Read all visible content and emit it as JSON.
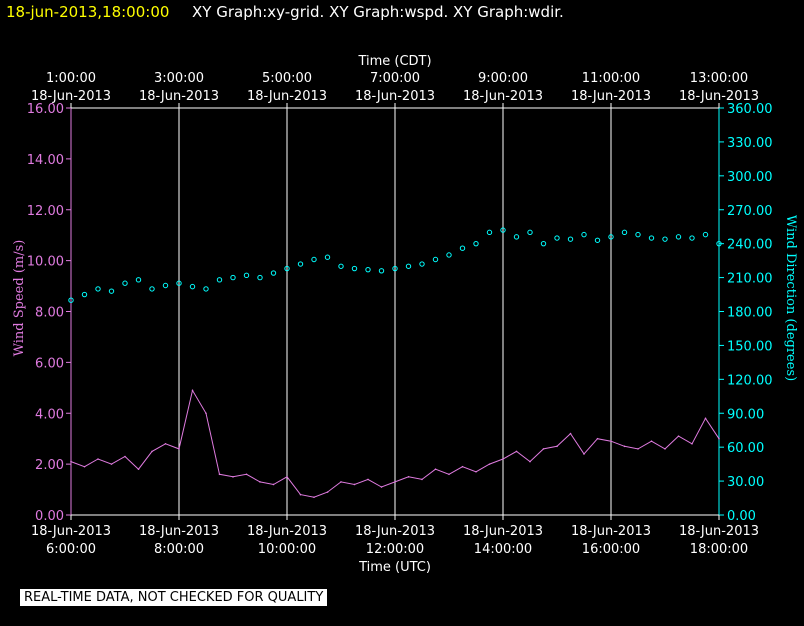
{
  "header": {
    "timestamp": "18-jun-2013,18:00:00",
    "graphs": "XY Graph:xy-grid.  XY Graph:wspd.  XY Graph:wdir."
  },
  "footer": {
    "notice": "REAL-TIME DATA, NOT CHECKED FOR QUALITY"
  },
  "colors": {
    "wspd": "#e07be0",
    "wdir": "#00ffff",
    "axis": "#ffffff",
    "grid": "#ffffff",
    "left_axis": "#e07be0",
    "right_axis": "#00ffff"
  },
  "chart_data": {
    "type": "line",
    "top_axis": {
      "title": "Time (CDT)",
      "ticks": [
        {
          "time": "1:00:00",
          "date": "18-Jun-2013",
          "utc_hour": 6
        },
        {
          "time": "3:00:00",
          "date": "18-Jun-2013",
          "utc_hour": 8
        },
        {
          "time": "5:00:00",
          "date": "18-Jun-2013",
          "utc_hour": 10
        },
        {
          "time": "7:00:00",
          "date": "18-Jun-2013",
          "utc_hour": 12
        },
        {
          "time": "9:00:00",
          "date": "18-Jun-2013",
          "utc_hour": 14
        },
        {
          "time": "11:00:00",
          "date": "18-Jun-2013",
          "utc_hour": 16
        },
        {
          "time": "13:00:00",
          "date": "18-Jun-2013",
          "utc_hour": 18
        }
      ]
    },
    "bottom_axis": {
      "title": "Time (UTC)",
      "ticks": [
        {
          "date": "18-Jun-2013",
          "time": "6:00:00",
          "utc_hour": 6
        },
        {
          "date": "18-Jun-2013",
          "time": "8:00:00",
          "utc_hour": 8
        },
        {
          "date": "18-Jun-2013",
          "time": "10:00:00",
          "utc_hour": 10
        },
        {
          "date": "18-Jun-2013",
          "time": "12:00:00",
          "utc_hour": 12
        },
        {
          "date": "18-Jun-2013",
          "time": "14:00:00",
          "utc_hour": 14
        },
        {
          "date": "18-Jun-2013",
          "time": "16:00:00",
          "utc_hour": 16
        },
        {
          "date": "18-Jun-2013",
          "time": "18:00:00",
          "utc_hour": 18
        }
      ]
    },
    "left_axis": {
      "title": "Wind Speed (m/s)",
      "ylim": [
        0,
        16
      ],
      "ticks": [
        "0.00",
        "2.00",
        "4.00",
        "6.00",
        "8.00",
        "10.00",
        "12.00",
        "14.00",
        "16.00"
      ]
    },
    "right_axis": {
      "title": "Wind Direction (degrees)",
      "ylim": [
        0,
        360
      ],
      "ticks": [
        "0.00",
        "30.00",
        "60.00",
        "90.00",
        "120.00",
        "150.00",
        "180.00",
        "210.00",
        "240.00",
        "270.00",
        "300.00",
        "330.00",
        "360.00"
      ]
    },
    "x_range_utc_hours": [
      6,
      18
    ],
    "grid": "vertical lines at tick times",
    "series": [
      {
        "key": "wspd",
        "style": "line",
        "axis": "left",
        "x": [
          6.0,
          6.25,
          6.5,
          6.75,
          7.0,
          7.25,
          7.5,
          7.75,
          8.0,
          8.25,
          8.5,
          8.75,
          9.0,
          9.25,
          9.5,
          9.75,
          10.0,
          10.25,
          10.5,
          10.75,
          11.0,
          11.25,
          11.5,
          11.75,
          12.0,
          12.25,
          12.5,
          12.75,
          13.0,
          13.25,
          13.5,
          13.75,
          14.0,
          14.25,
          14.5,
          14.75,
          15.0,
          15.25,
          15.5,
          15.75,
          16.0,
          16.25,
          16.5,
          16.75,
          17.0,
          17.25,
          17.5,
          17.75,
          18.0
        ],
        "values": [
          2.1,
          1.9,
          2.2,
          2.0,
          2.3,
          1.8,
          2.5,
          2.8,
          2.6,
          4.9,
          4.0,
          1.6,
          1.5,
          1.6,
          1.3,
          1.2,
          1.5,
          0.8,
          0.7,
          0.9,
          1.3,
          1.2,
          1.4,
          1.1,
          1.3,
          1.5,
          1.4,
          1.8,
          1.6,
          1.9,
          1.7,
          2.0,
          2.2,
          2.5,
          2.1,
          2.6,
          2.7,
          3.2,
          2.4,
          3.0,
          2.9,
          2.7,
          2.6,
          2.9,
          2.6,
          3.1,
          2.8,
          3.8,
          3.0
        ]
      },
      {
        "key": "wdir",
        "style": "scatter",
        "axis": "right",
        "x": [
          6.0,
          6.25,
          6.5,
          6.75,
          7.0,
          7.25,
          7.5,
          7.75,
          8.0,
          8.25,
          8.5,
          8.75,
          9.0,
          9.25,
          9.5,
          9.75,
          10.0,
          10.25,
          10.5,
          10.75,
          11.0,
          11.25,
          11.5,
          11.75,
          12.0,
          12.25,
          12.5,
          12.75,
          13.0,
          13.25,
          13.5,
          13.75,
          14.0,
          14.25,
          14.5,
          14.75,
          15.0,
          15.25,
          15.5,
          15.75,
          16.0,
          16.25,
          16.5,
          16.75,
          17.0,
          17.25,
          17.5,
          17.75,
          18.0
        ],
        "values": [
          190,
          195,
          200,
          198,
          205,
          208,
          200,
          203,
          205,
          202,
          200,
          208,
          210,
          212,
          210,
          214,
          218,
          222,
          226,
          228,
          220,
          218,
          217,
          216,
          218,
          220,
          222,
          226,
          230,
          236,
          240,
          250,
          252,
          246,
          250,
          240,
          245,
          244,
          248,
          243,
          246,
          250,
          248,
          245,
          244,
          246,
          245,
          248,
          240
        ]
      }
    ]
  }
}
